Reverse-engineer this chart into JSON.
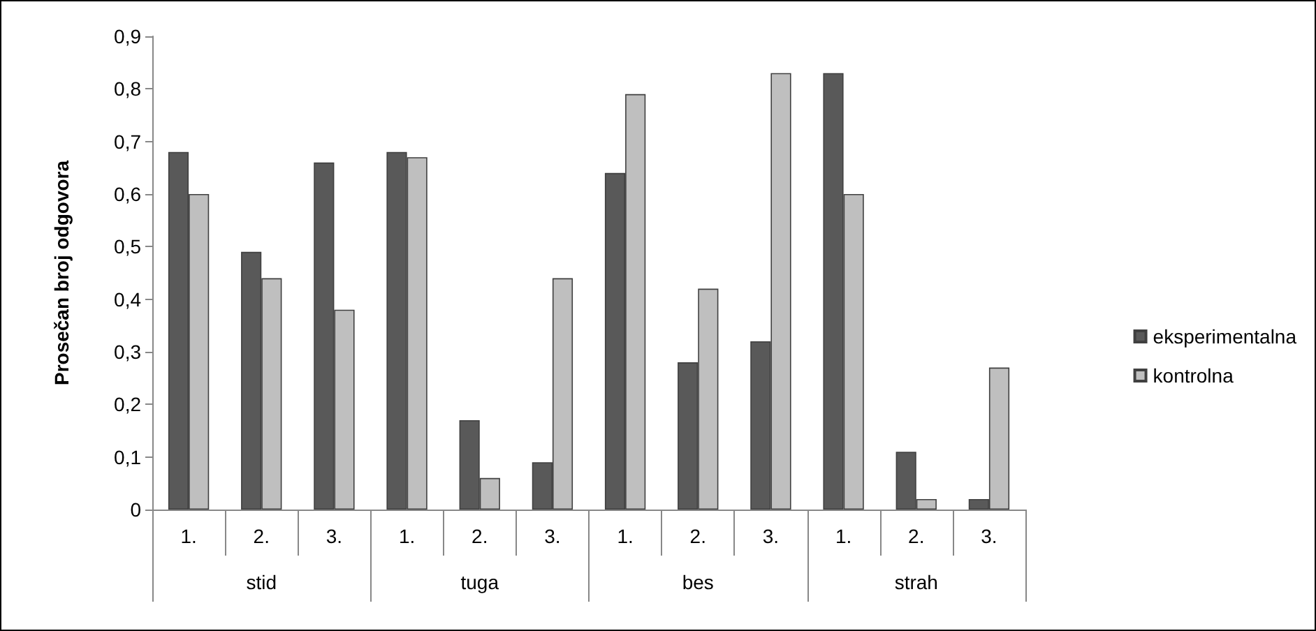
{
  "chart_data": {
    "type": "bar",
    "ylabel": "Prosečan broj odgovora",
    "categories": [
      "1.",
      "2.",
      "3.",
      "1.",
      "2.",
      "3.",
      "1.",
      "2.",
      "3.",
      "1.",
      "2.",
      "3."
    ],
    "annotations": [
      "stid",
      "tuga",
      "bes",
      "strah"
    ],
    "series": [
      {
        "name": "eksperimentalna",
        "color": "#595959",
        "values": [
          0.68,
          0.49,
          0.66,
          0.68,
          0.17,
          0.09,
          0.64,
          0.28,
          0.32,
          0.83,
          0.11,
          0.02
        ]
      },
      {
        "name": "kontrolna",
        "color": "#bfbfbf",
        "values": [
          0.6,
          0.44,
          0.38,
          0.67,
          0.06,
          0.44,
          0.79,
          0.42,
          0.83,
          0.6,
          0.02,
          0.27
        ]
      }
    ],
    "ylim": [
      0,
      0.9
    ],
    "yticks": [
      0,
      {
        "value": 0.1,
        "label": "0,1"
      },
      {
        "value": 0.2,
        "label": "0,2"
      },
      {
        "value": 0.3,
        "label": "0,3"
      },
      {
        "value": 0.4,
        "label": "0,4"
      },
      {
        "value": 0.5,
        "label": "0,5"
      },
      {
        "value": 0.6,
        "label": "0,6"
      },
      {
        "value": 0.7,
        "label": "0,7"
      },
      {
        "value": 0.8,
        "label": "0,8"
      },
      {
        "value": 0.9,
        "label": "0,9"
      }
    ],
    "grid": false,
    "legend": "right"
  }
}
